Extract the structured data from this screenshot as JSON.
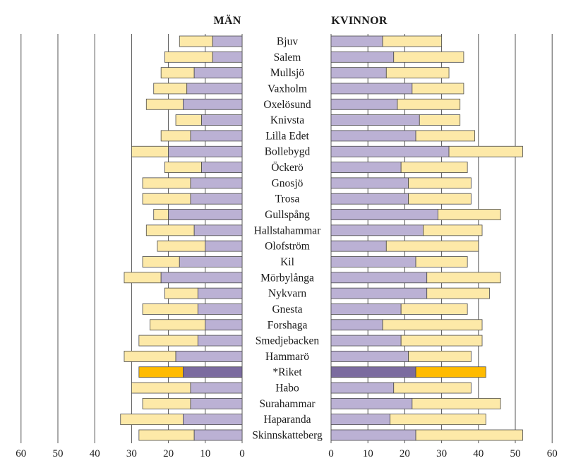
{
  "chart_data": {
    "type": "bar",
    "orientation": "horizontal",
    "layout": "back-to-back",
    "left_panel": {
      "title": "MÄN",
      "xlim": [
        0,
        60
      ],
      "direction": "right-to-left",
      "ticks": [
        60,
        50,
        40,
        30,
        20,
        10,
        0
      ]
    },
    "right_panel": {
      "title": "KVINNOR",
      "xlim": [
        0,
        60
      ],
      "direction": "left-to-right",
      "ticks": [
        0,
        10,
        20,
        30,
        40,
        50,
        60
      ]
    },
    "grid": true,
    "stacked": true,
    "categories": [
      "Bjuv",
      "Salem",
      "Mullsjö",
      "Vaxholm",
      "Oxelösund",
      "Knivsta",
      "Lilla Edet",
      "Bollebygd",
      "Öckerö",
      "Gnosjö",
      "Trosa",
      "Gullspång",
      "Hallstahammar",
      "Olofström",
      "Kil",
      "Mörbylånga",
      "Nykvarn",
      "Gnesta",
      "Forshaga",
      "Smedjebacken",
      "Hammarö",
      "*Riket",
      "Habo",
      "Surahammar",
      "Haparanda",
      "Skinnskatteberg"
    ],
    "highlight_category": "*Riket",
    "colors": {
      "segment1": "#bbb1d4",
      "segment2": "#fde9a8",
      "segment1_highlight": "#7b6b9f",
      "segment2_highlight": "#ffbb00",
      "border": "#4a4a4a",
      "grid": "#555555"
    },
    "men": {
      "segment1": [
        8,
        8,
        13,
        15,
        16,
        11,
        14,
        20,
        11,
        14,
        14,
        20,
        13,
        10,
        17,
        22,
        12,
        12,
        10,
        12,
        18,
        16,
        14,
        14,
        16,
        13
      ],
      "total": [
        17,
        21,
        22,
        24,
        26,
        18,
        22,
        30,
        21,
        27,
        27,
        24,
        26,
        23,
        27,
        32,
        21,
        27,
        25,
        28,
        32,
        28,
        30,
        27,
        33,
        28
      ]
    },
    "women": {
      "segment1": [
        14,
        17,
        15,
        22,
        18,
        24,
        23,
        32,
        19,
        21,
        21,
        29,
        25,
        15,
        23,
        26,
        26,
        19,
        14,
        19,
        21,
        23,
        17,
        22,
        16,
        23
      ],
      "total": [
        30,
        36,
        32,
        36,
        35,
        35,
        39,
        52,
        37,
        38,
        38,
        46,
        41,
        40,
        37,
        46,
        43,
        37,
        41,
        41,
        38,
        42,
        38,
        46,
        42,
        52
      ]
    }
  }
}
